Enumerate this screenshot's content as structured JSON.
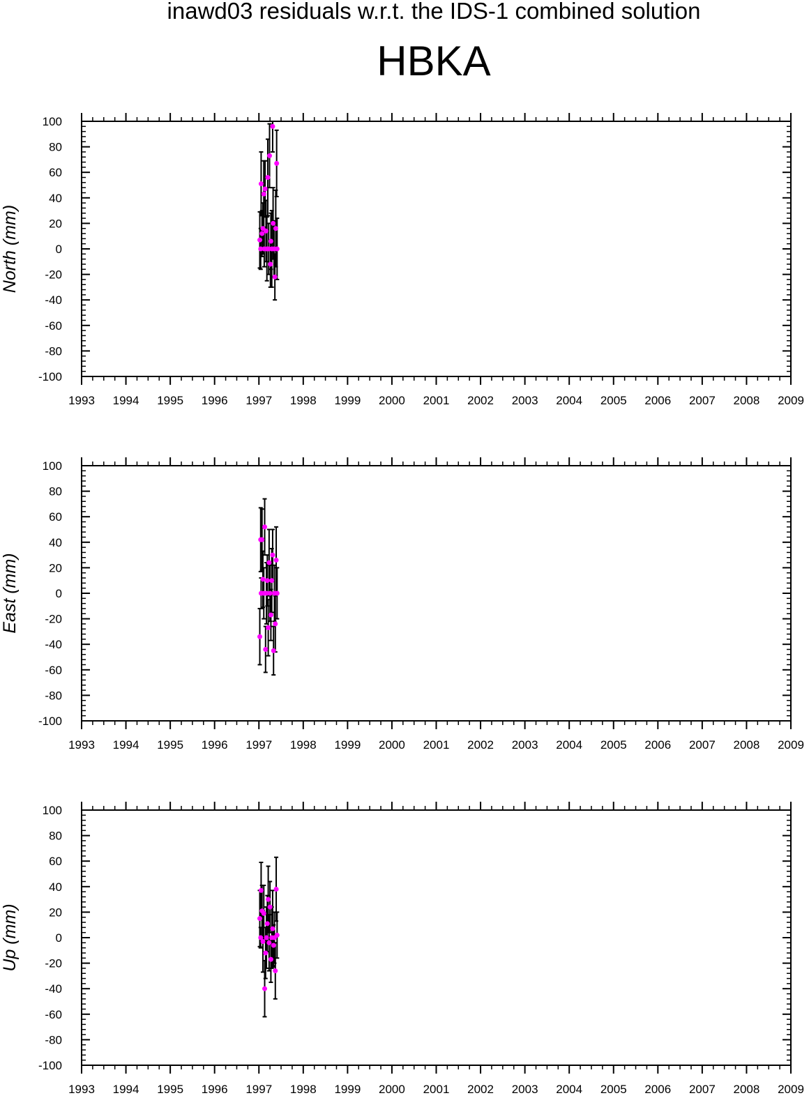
{
  "figure": {
    "title": "inawd03 residuals w.r.t. the IDS-1 combined solution",
    "station": "HBKA"
  },
  "colors": {
    "point": "#ff00ff",
    "errorbar": "#000000",
    "axis": "#000000"
  },
  "chart_data": [
    {
      "type": "scatter",
      "ylabel": "North (mm)",
      "xlim": [
        1993,
        2009
      ],
      "ylim": [
        -100,
        100
      ],
      "x_ticks": [
        1993,
        1994,
        1995,
        1996,
        1997,
        1998,
        1999,
        2000,
        2001,
        2002,
        2003,
        2004,
        2005,
        2006,
        2007,
        2008,
        2009
      ],
      "y_ticks": [
        -100,
        -80,
        -60,
        -40,
        -20,
        0,
        20,
        40,
        60,
        80,
        100
      ],
      "series": [
        {
          "points": [
            {
              "x": 1997.02,
              "y": 7,
              "err": 22
            },
            {
              "x": 1997.04,
              "y": 0,
              "err": 16
            },
            {
              "x": 1997.05,
              "y": 51,
              "err": 25
            },
            {
              "x": 1997.07,
              "y": 12,
              "err": 18
            },
            {
              "x": 1997.09,
              "y": 16,
              "err": 20
            },
            {
              "x": 1997.11,
              "y": 43,
              "err": 26
            },
            {
              "x": 1997.12,
              "y": 0,
              "err": 14
            },
            {
              "x": 1997.14,
              "y": 47,
              "err": 22
            },
            {
              "x": 1997.16,
              "y": 14,
              "err": 24
            },
            {
              "x": 1997.18,
              "y": 0,
              "err": 25
            },
            {
              "x": 1997.2,
              "y": 56,
              "err": 30
            },
            {
              "x": 1997.22,
              "y": 0,
              "err": 20
            },
            {
              "x": 1997.24,
              "y": 73,
              "err": 25
            },
            {
              "x": 1997.26,
              "y": -12,
              "err": 18
            },
            {
              "x": 1997.27,
              "y": 6,
              "err": 22
            },
            {
              "x": 1997.29,
              "y": 0,
              "err": 30
            },
            {
              "x": 1997.31,
              "y": 96,
              "err": 20
            },
            {
              "x": 1997.32,
              "y": 20,
              "err": 28
            },
            {
              "x": 1997.34,
              "y": 0,
              "err": 22
            },
            {
              "x": 1997.36,
              "y": -22,
              "err": 18
            },
            {
              "x": 1997.38,
              "y": 16,
              "err": 30
            },
            {
              "x": 1997.4,
              "y": 67,
              "err": 26
            },
            {
              "x": 1997.41,
              "y": 0,
              "err": 24
            }
          ]
        }
      ]
    },
    {
      "type": "scatter",
      "ylabel": "East (mm)",
      "xlim": [
        1993,
        2009
      ],
      "ylim": [
        -100,
        100
      ],
      "x_ticks": [
        1993,
        1994,
        1995,
        1996,
        1997,
        1998,
        1999,
        2000,
        2001,
        2002,
        2003,
        2004,
        2005,
        2006,
        2007,
        2008,
        2009
      ],
      "y_ticks": [
        -100,
        -80,
        -60,
        -40,
        -20,
        0,
        20,
        40,
        60,
        80,
        100
      ],
      "series": [
        {
          "points": [
            {
              "x": 1997.02,
              "y": -34,
              "err": 22
            },
            {
              "x": 1997.04,
              "y": 42,
              "err": 25
            },
            {
              "x": 1997.05,
              "y": 0,
              "err": 12
            },
            {
              "x": 1997.07,
              "y": 42,
              "err": 24
            },
            {
              "x": 1997.09,
              "y": 11,
              "err": 22
            },
            {
              "x": 1997.11,
              "y": 0,
              "err": 20
            },
            {
              "x": 1997.13,
              "y": 52,
              "err": 22
            },
            {
              "x": 1997.15,
              "y": -44,
              "err": 18
            },
            {
              "x": 1997.17,
              "y": 0,
              "err": 24
            },
            {
              "x": 1997.19,
              "y": 10,
              "err": 20
            },
            {
              "x": 1997.21,
              "y": -27,
              "err": 22
            },
            {
              "x": 1997.23,
              "y": 24,
              "err": 26
            },
            {
              "x": 1997.25,
              "y": 0,
              "err": 22
            },
            {
              "x": 1997.27,
              "y": -17,
              "err": 20
            },
            {
              "x": 1997.29,
              "y": 10,
              "err": 25
            },
            {
              "x": 1997.31,
              "y": 30,
              "err": 20
            },
            {
              "x": 1997.33,
              "y": -45,
              "err": 19
            },
            {
              "x": 1997.35,
              "y": 0,
              "err": 22
            },
            {
              "x": 1997.37,
              "y": -24,
              "err": 22
            },
            {
              "x": 1997.39,
              "y": 26,
              "err": 26
            },
            {
              "x": 1997.41,
              "y": 0,
              "err": 20
            }
          ]
        }
      ]
    },
    {
      "type": "scatter",
      "ylabel": "Up (mm)",
      "xlim": [
        1993,
        2009
      ],
      "ylim": [
        -100,
        100
      ],
      "x_ticks": [
        1993,
        1994,
        1995,
        1996,
        1997,
        1998,
        1999,
        2000,
        2001,
        2002,
        2003,
        2004,
        2005,
        2006,
        2007,
        2008,
        2009
      ],
      "y_ticks": [
        -100,
        -80,
        -60,
        -40,
        -20,
        0,
        20,
        40,
        60,
        80,
        100
      ],
      "series": [
        {
          "points": [
            {
              "x": 1997.02,
              "y": 15,
              "err": 22
            },
            {
              "x": 1997.04,
              "y": 0,
              "err": 8
            },
            {
              "x": 1997.05,
              "y": 37,
              "err": 22
            },
            {
              "x": 1997.07,
              "y": 21,
              "err": 20
            },
            {
              "x": 1997.09,
              "y": -3,
              "err": 24
            },
            {
              "x": 1997.11,
              "y": 19,
              "err": 22
            },
            {
              "x": 1997.13,
              "y": -40,
              "err": 22
            },
            {
              "x": 1997.15,
              "y": -12,
              "err": 20
            },
            {
              "x": 1997.17,
              "y": 0,
              "err": 24
            },
            {
              "x": 1997.19,
              "y": 11,
              "err": 22
            },
            {
              "x": 1997.21,
              "y": 30,
              "err": 26
            },
            {
              "x": 1997.23,
              "y": -4,
              "err": 22
            },
            {
              "x": 1997.25,
              "y": 24,
              "err": 20
            },
            {
              "x": 1997.27,
              "y": -17,
              "err": 18
            },
            {
              "x": 1997.29,
              "y": 0,
              "err": 24
            },
            {
              "x": 1997.31,
              "y": 7,
              "err": 30
            },
            {
              "x": 1997.33,
              "y": -6,
              "err": 16
            },
            {
              "x": 1997.35,
              "y": 0,
              "err": 20
            },
            {
              "x": 1997.37,
              "y": -26,
              "err": 22
            },
            {
              "x": 1997.39,
              "y": 38,
              "err": 25
            },
            {
              "x": 1997.41,
              "y": 2,
              "err": 18
            }
          ]
        }
      ]
    }
  ]
}
